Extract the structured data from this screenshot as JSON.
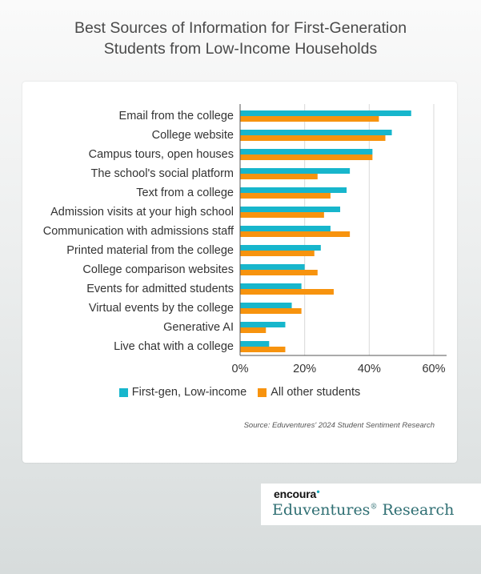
{
  "title": {
    "line1": "Best Sources of Information for First-Generation",
    "line2": "Students from Low-Income Households"
  },
  "colors": {
    "first_gen": "#17b6cc",
    "all_other": "#f7930e",
    "gridline": "#d9d9d9",
    "axis": "#555555",
    "text": "#333333"
  },
  "chart_data": {
    "type": "bar",
    "orientation": "horizontal",
    "categories": [
      "Email from the college",
      "College website",
      "Campus tours, open houses",
      "The school's social platform",
      "Text from a college",
      "Admission visits at your high school",
      "Communication with admissions staff",
      "Printed material from the college",
      "College comparison websites",
      "Events for admitted students",
      "Virtual events by the college",
      "Generative AI",
      "Live chat with a college"
    ],
    "series": [
      {
        "name": "First-gen, Low-income",
        "values": [
          53,
          47,
          41,
          34,
          33,
          31,
          28,
          25,
          20,
          19,
          16,
          14,
          9
        ]
      },
      {
        "name": "All other students",
        "values": [
          43,
          45,
          41,
          24,
          28,
          26,
          34,
          23,
          24,
          29,
          19,
          8,
          14
        ]
      }
    ],
    "xlim": [
      0,
      60
    ],
    "x_ticks": [
      "0%",
      "20%",
      "40%",
      "60%"
    ],
    "x_tick_values": [
      0,
      20,
      40,
      60
    ],
    "grid": "vertical",
    "legend_position": "bottom"
  },
  "source": "Source: Eduventures' 2024 Student Sentiment Research",
  "logo": {
    "brand": "encoura",
    "name": "Eduventures",
    "suffix": "Research"
  }
}
